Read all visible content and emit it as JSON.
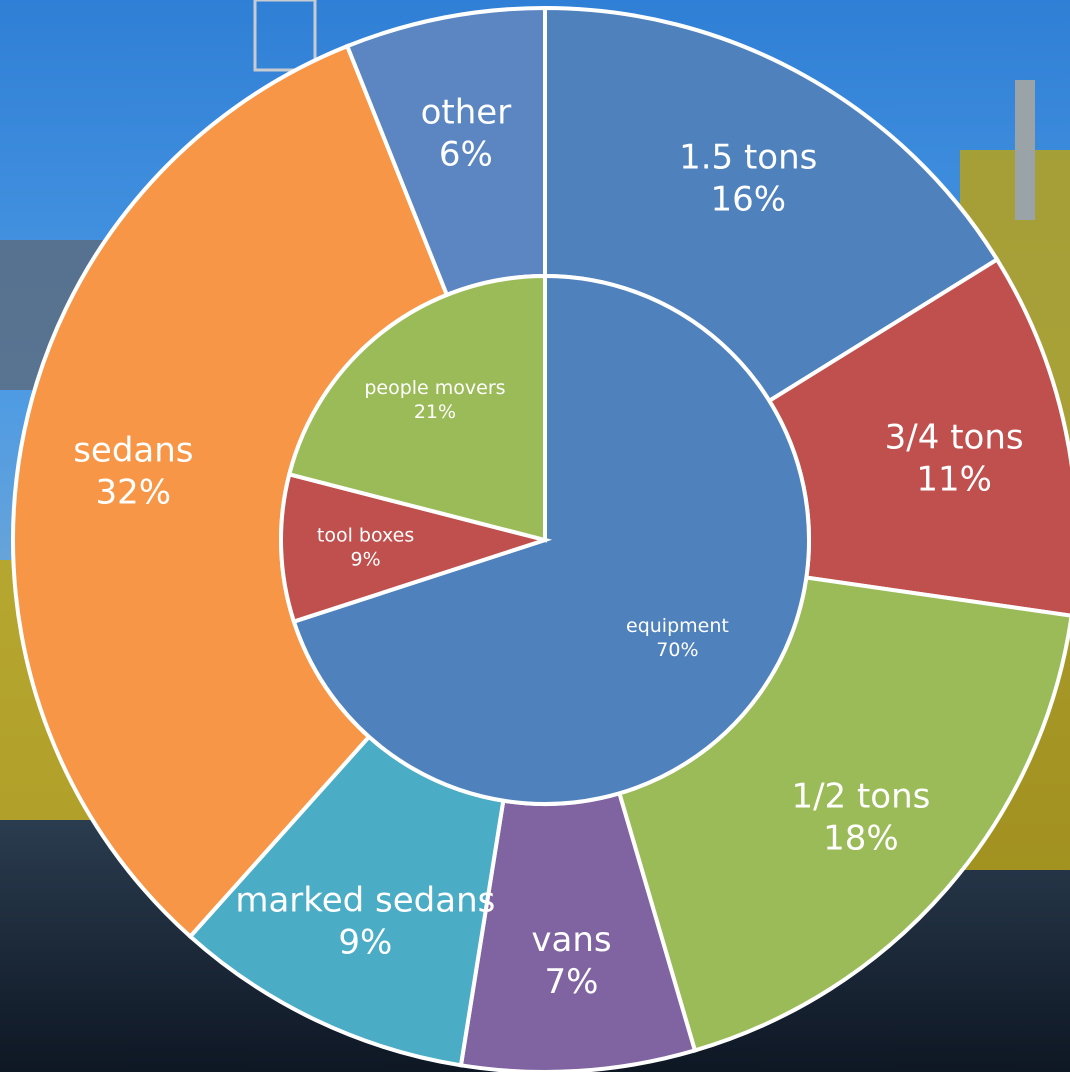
{
  "chart_data": [
    {
      "type": "pie",
      "ring": "inner",
      "categories": [
        "equipment",
        "tool boxes",
        "people movers"
      ],
      "values": [
        70,
        9,
        21
      ],
      "labels": [
        "70%",
        "9%",
        "21%"
      ],
      "colors": [
        "#4f81bd",
        "#c0504d",
        "#9bbb59"
      ]
    },
    {
      "type": "pie",
      "ring": "outer",
      "categories": [
        "1.5 tons",
        "3/4 tons",
        "1/2 tons",
        "vans",
        "marked sedans",
        "sedans",
        "other"
      ],
      "values": [
        16,
        11,
        18,
        7,
        9,
        32,
        6
      ],
      "labels": [
        "16%",
        "11%",
        "18%",
        "7%",
        "9%",
        "32%",
        "6%"
      ],
      "colors": [
        "#4f81bd",
        "#c0504d",
        "#9bbb59",
        "#8064a2",
        "#4bacc6",
        "#f79646",
        "#5b86c2"
      ]
    }
  ]
}
